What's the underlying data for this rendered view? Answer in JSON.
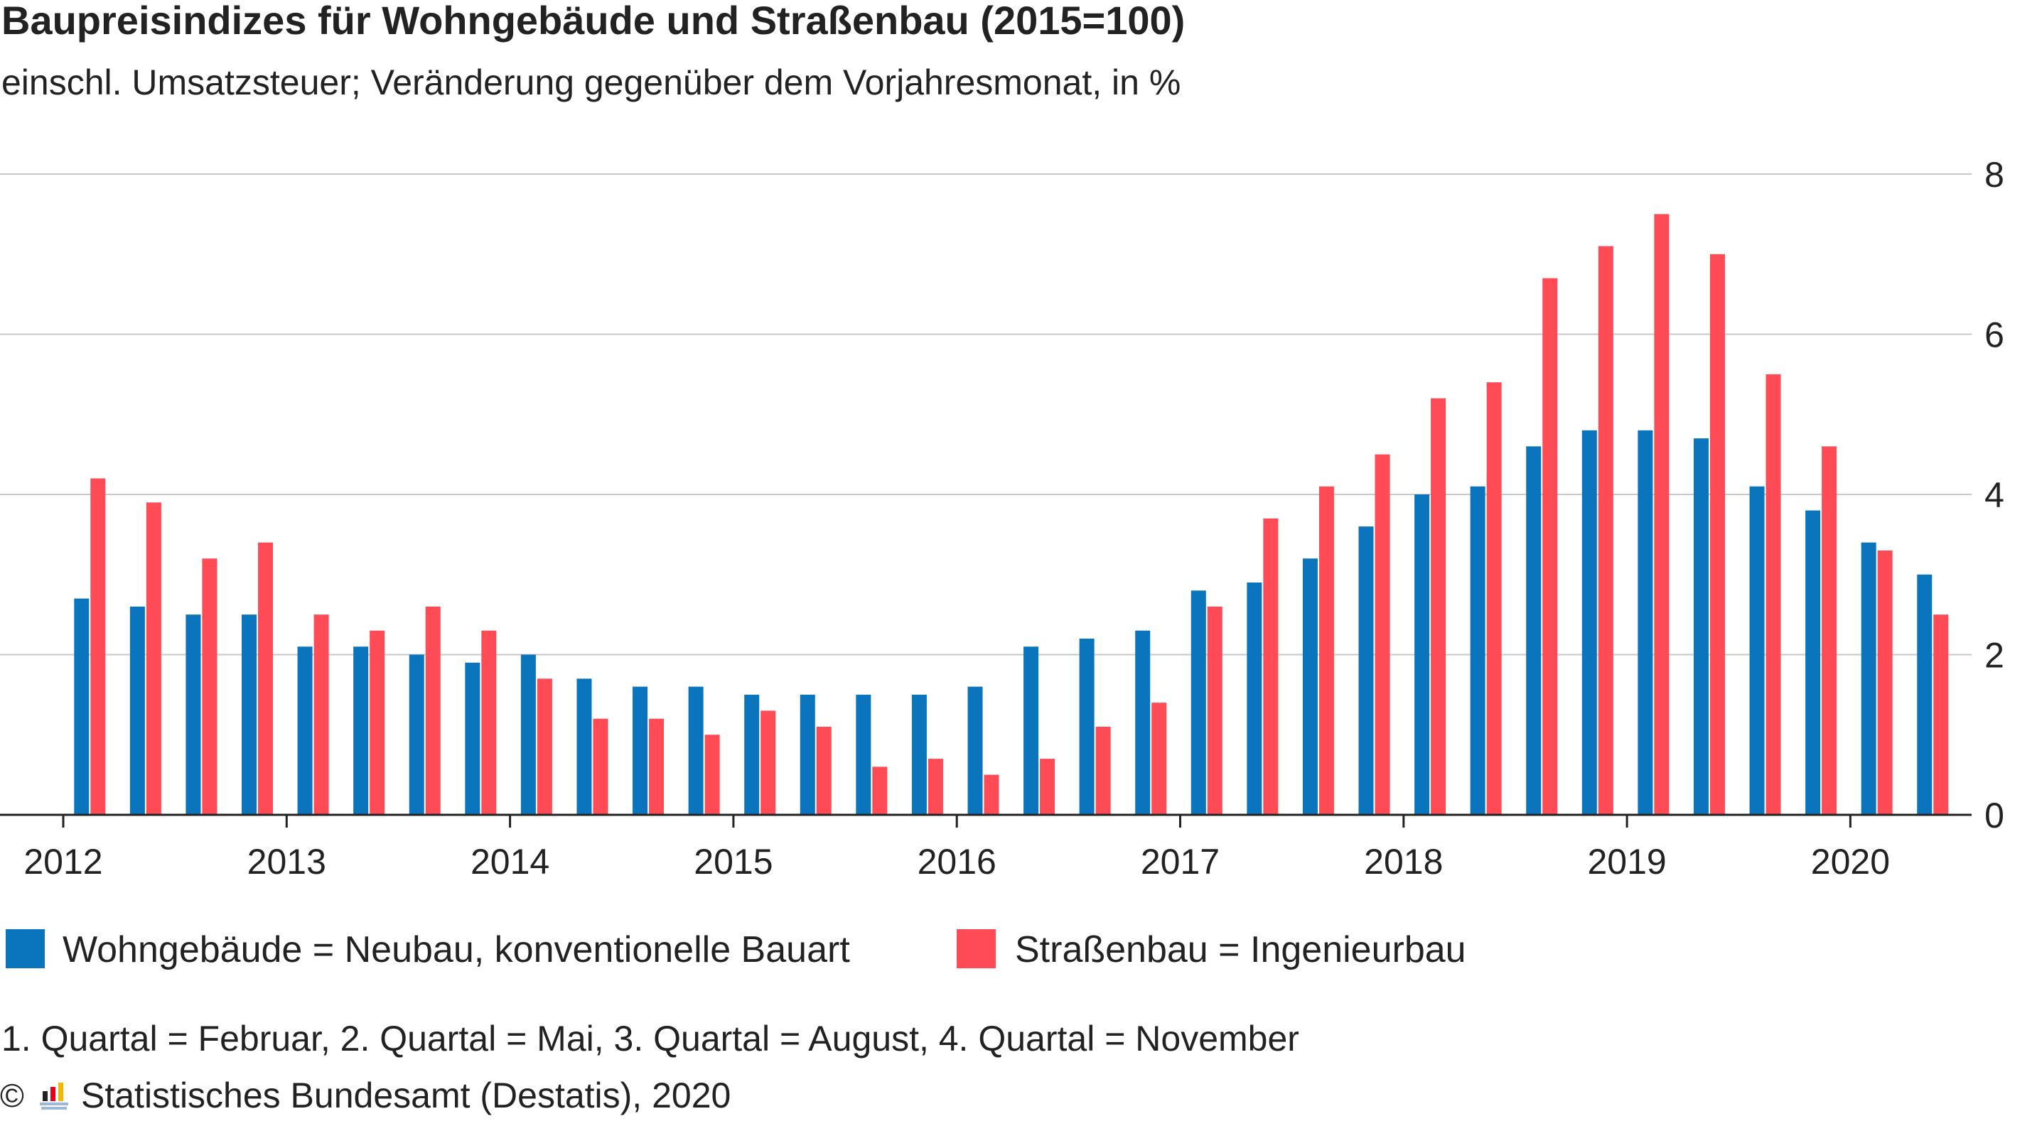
{
  "title": "Baupreisindizes für Wohngebäude und Straßenbau (2015=100)",
  "subtitle": "einschl. Umsatzsteuer; Veränderung gegenüber dem Vorjahresmonat, in %",
  "legend": [
    {
      "label": "Wohngebäude = Neubau, konventionelle Bauart",
      "color": "#0a74bd"
    },
    {
      "label": "Straßenbau = Ingenieurbau",
      "color": "#ff4b55"
    }
  ],
  "footnote": "1. Quartal = Februar, 2. Quartal = Mai, 3. Quartal = August, 4. Quartal = November",
  "source": {
    "copyright": "©",
    "text": "Statistisches Bundesamt (Destatis), 2020"
  },
  "chart_data": {
    "type": "bar",
    "categories": [
      "2012 Q1",
      "2012 Q2",
      "2012 Q3",
      "2012 Q4",
      "2013 Q1",
      "2013 Q2",
      "2013 Q3",
      "2013 Q4",
      "2014 Q1",
      "2014 Q2",
      "2014 Q3",
      "2014 Q4",
      "2015 Q1",
      "2015 Q2",
      "2015 Q3",
      "2015 Q4",
      "2016 Q1",
      "2016 Q2",
      "2016 Q3",
      "2016 Q4",
      "2017 Q1",
      "2017 Q2",
      "2017 Q3",
      "2017 Q4",
      "2018 Q1",
      "2018 Q2",
      "2018 Q3",
      "2018 Q4",
      "2019 Q1",
      "2019 Q2",
      "2019 Q3",
      "2019 Q4",
      "2020 Q1",
      "2020 Q2"
    ],
    "year_labels": [
      "2012",
      "2013",
      "2014",
      "2015",
      "2016",
      "2017",
      "2018",
      "2019",
      "2020"
    ],
    "series": [
      {
        "name": "Wohngebäude = Neubau, konventionelle Bauart",
        "color": "#0a74bd",
        "values": [
          2.7,
          2.6,
          2.5,
          2.5,
          2.1,
          2.1,
          2.0,
          1.9,
          2.0,
          1.7,
          1.6,
          1.6,
          1.5,
          1.5,
          1.5,
          1.5,
          1.6,
          2.1,
          2.2,
          2.3,
          2.8,
          2.9,
          3.2,
          3.6,
          4.0,
          4.1,
          4.6,
          4.8,
          4.8,
          4.7,
          4.1,
          3.8,
          3.4,
          3.0
        ]
      },
      {
        "name": "Straßenbau = Ingenieurbau",
        "color": "#ff4b55",
        "values": [
          4.2,
          3.9,
          3.2,
          3.4,
          2.5,
          2.3,
          2.6,
          2.3,
          1.7,
          1.2,
          1.2,
          1.0,
          1.3,
          1.1,
          0.6,
          0.7,
          0.5,
          0.7,
          1.1,
          1.4,
          2.6,
          3.7,
          4.1,
          4.5,
          5.2,
          5.4,
          6.7,
          7.1,
          7.5,
          7.0,
          5.5,
          4.6,
          3.3,
          2.5
        ]
      }
    ],
    "y_ticks": [
      "8",
      "6",
      "4",
      "2",
      "0"
    ],
    "ylim": [
      0,
      8
    ],
    "grid": true,
    "y_axis_position": "right",
    "legend_position": "bottom-left"
  }
}
